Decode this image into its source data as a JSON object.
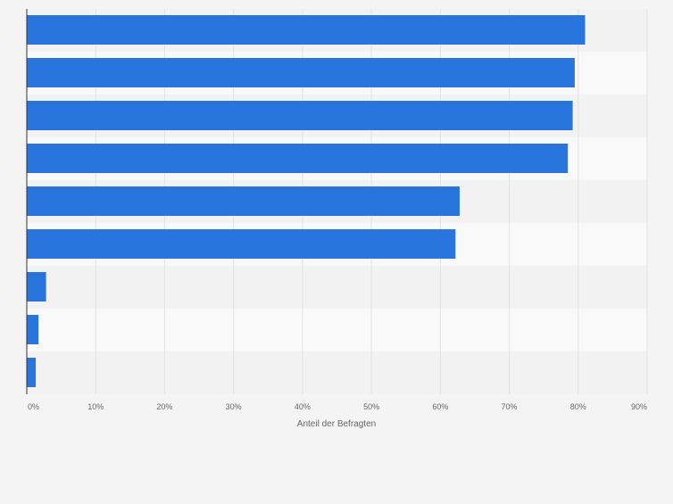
{
  "colors": {
    "page_bg": "#f4f4f4",
    "band_dark": "#f2f2f2",
    "band_light": "#f9f9f9",
    "bar": "#2876dd",
    "grid": "#e2e2e2",
    "axis": "#333333",
    "tick_text": "#666666"
  },
  "chart_data": {
    "type": "bar",
    "orientation": "horizontal",
    "title": "",
    "categories": [
      "",
      "",
      "",
      "",
      "",
      "",
      "",
      "",
      ""
    ],
    "values": [
      81,
      79.5,
      79.2,
      78.5,
      62.8,
      62.2,
      2.8,
      1.7,
      1.3
    ],
    "xlabel": "Anteil der Befragten",
    "ylabel": "",
    "xlim": [
      0,
      90
    ],
    "xticks": [
      "0%",
      "10%",
      "20%",
      "30%",
      "40%",
      "50%",
      "60%",
      "70%",
      "80%",
      "90%"
    ],
    "grid": true,
    "legend": "none"
  }
}
